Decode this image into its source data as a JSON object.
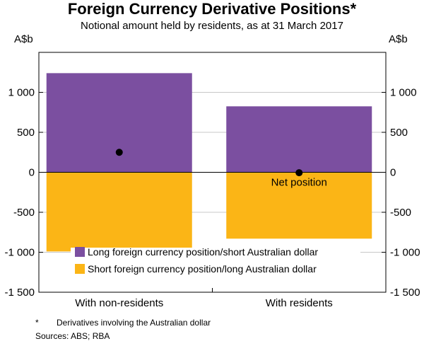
{
  "title": "Foreign Currency Derivative Positions*",
  "subtitle": "Notional amount held by residents, as at 31 March 2017",
  "unit_left": "A$b",
  "unit_right": "A$b",
  "footnote_marker": "*",
  "footnote_text": "Derivatives involving the Australian dollar",
  "sources": "Sources: ABS; RBA",
  "chart_data": {
    "type": "bar",
    "stacked": true,
    "categories": [
      "With non-residents",
      "With residents"
    ],
    "series": [
      {
        "name": "Long foreign currency position/short Australian dollar",
        "color": "#7b4fa0",
        "values": [
          1240,
          825
        ]
      },
      {
        "name": "Short foreign currency position/long Australian dollar",
        "color": "#fbb516",
        "values": [
          -990,
          -830
        ]
      }
    ],
    "net_position": {
      "label": "Net position",
      "values": [
        250,
        -5
      ],
      "color": "#000000"
    },
    "ylim": [
      -1500,
      1500
    ],
    "yticks": [
      -1500,
      -1000,
      -500,
      0,
      500,
      1000
    ],
    "ytick_labels": [
      "-1 500",
      "-1 000",
      "-500",
      "0",
      "500",
      "1 000"
    ],
    "grid": true,
    "legend_position": "bottom-center"
  }
}
